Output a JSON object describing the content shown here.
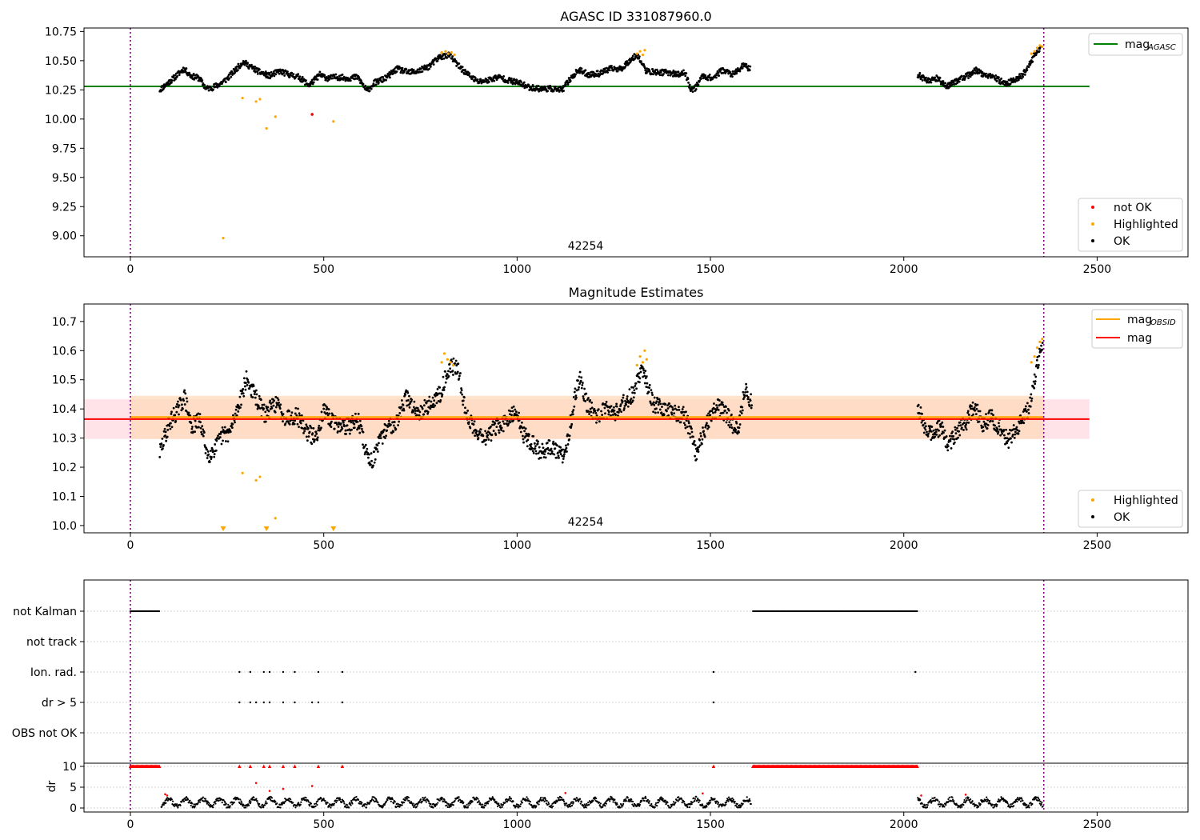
{
  "chart_data": [
    {
      "type": "scatter",
      "title": "AGASC ID 331087960.0",
      "xlim": [
        -120,
        2735
      ],
      "ylim": [
        8.82,
        10.78
      ],
      "xticks": [
        0,
        500,
        1000,
        1500,
        2000,
        2500
      ],
      "yticks": [
        "10.75",
        "10.50",
        "10.25",
        "10.00",
        "9.75",
        "9.50",
        "9.25",
        "9.00"
      ],
      "annotation": "42254",
      "vlines_x": [
        0,
        2362
      ],
      "reference_line": {
        "name": "mag_AGASC",
        "y": 10.28,
        "x": [
          -120,
          2480
        ],
        "color": "#008000"
      },
      "legend_top": [
        {
          "label": "mag",
          "sub": "AGASC",
          "color": "#008000",
          "kind": "line"
        }
      ],
      "legend_bottom": [
        {
          "label": "not OK",
          "color": "#ff0000",
          "kind": "dot"
        },
        {
          "label": "Highlighted",
          "color": "#ffa500",
          "kind": "dot"
        },
        {
          "label": "OK",
          "color": "#000000",
          "kind": "dot"
        }
      ],
      "segments": [
        {
          "x": [
            76,
            112,
            138,
            157,
            178,
            196,
            212,
            226,
            248,
            266,
            291,
            310,
            335,
            360,
            385,
            412,
            436,
            462,
            490,
            510,
            536,
            563,
            588,
            612,
            631,
            660,
            690,
            718,
            744,
            772,
            799,
            824,
            850,
            870,
            898,
            922,
            951,
            980,
            1004,
            1034,
            1061,
            1087,
            1117,
            1134,
            1159,
            1186,
            1212,
            1241,
            1269,
            1294,
            1311,
            1334,
            1363,
            1391,
            1418,
            1434,
            1450,
            1462,
            1479,
            1505,
            1531,
            1560,
            1585,
            1604
          ],
          "y": [
            10.25,
            10.35,
            10.43,
            10.37,
            10.35,
            10.26,
            10.27,
            10.29,
            10.34,
            10.4,
            10.49,
            10.45,
            10.4,
            10.37,
            10.41,
            10.38,
            10.36,
            10.29,
            10.38,
            10.35,
            10.36,
            10.35,
            10.36,
            10.24,
            10.31,
            10.35,
            10.43,
            10.4,
            10.41,
            10.45,
            10.53,
            10.55,
            10.45,
            10.39,
            10.32,
            10.33,
            10.36,
            10.33,
            10.31,
            10.27,
            10.26,
            10.26,
            10.25,
            10.33,
            10.42,
            10.38,
            10.39,
            10.43,
            10.43,
            10.51,
            10.55,
            10.41,
            10.4,
            10.4,
            10.38,
            10.4,
            10.25,
            10.27,
            10.37,
            10.35,
            10.42,
            10.38,
            10.46,
            10.43
          ]
        },
        {
          "x": [
            2036,
            2062,
            2086,
            2112,
            2137,
            2165,
            2188,
            2212,
            2238,
            2263,
            2287,
            2305,
            2320,
            2340,
            2355
          ],
          "y": [
            10.38,
            10.33,
            10.35,
            10.28,
            10.33,
            10.37,
            10.42,
            10.37,
            10.35,
            10.3,
            10.34,
            10.37,
            10.43,
            10.56,
            10.62
          ]
        }
      ],
      "highlighted": [
        {
          "x": 240,
          "y": 8.98
        },
        {
          "x": 290,
          "y": 10.18
        },
        {
          "x": 325,
          "y": 10.15
        },
        {
          "x": 335,
          "y": 10.17
        },
        {
          "x": 352,
          "y": 9.92
        },
        {
          "x": 375,
          "y": 10.02
        },
        {
          "x": 525,
          "y": 9.98
        },
        {
          "x": 805,
          "y": 10.57
        },
        {
          "x": 815,
          "y": 10.58
        },
        {
          "x": 822,
          "y": 10.56
        },
        {
          "x": 830,
          "y": 10.57
        },
        {
          "x": 838,
          "y": 10.55
        },
        {
          "x": 1310,
          "y": 10.56
        },
        {
          "x": 1318,
          "y": 10.58
        },
        {
          "x": 1325,
          "y": 10.55
        },
        {
          "x": 1330,
          "y": 10.59
        },
        {
          "x": 2330,
          "y": 10.56
        },
        {
          "x": 2338,
          "y": 10.58
        },
        {
          "x": 2345,
          "y": 10.61
        },
        {
          "x": 2352,
          "y": 10.63
        },
        {
          "x": 2358,
          "y": 10.62
        }
      ],
      "not_ok": [
        {
          "x": 470,
          "y": 10.04
        }
      ]
    },
    {
      "type": "scatter",
      "title": "Magnitude Estimates",
      "xlim": [
        -120,
        2735
      ],
      "ylim": [
        9.975,
        10.76
      ],
      "xticks": [
        0,
        500,
        1000,
        1500,
        2000,
        2500
      ],
      "yticks": [
        "10.7",
        "10.6",
        "10.5",
        "10.4",
        "10.3",
        "10.2",
        "10.1",
        "10.0"
      ],
      "annotation": "42254",
      "vlines_x": [
        0,
        2362
      ],
      "mag_band": {
        "x": [
          -120,
          2480
        ],
        "y": [
          10.297,
          10.433
        ],
        "color": "#ffc0cb"
      },
      "obsid_band": {
        "x": [
          0,
          2362
        ],
        "y": [
          10.297,
          10.445
        ],
        "color": "#ffdab9"
      },
      "mag_line": {
        "name": "mag",
        "y": 10.365,
        "x": [
          -120,
          2480
        ],
        "color": "#ff0000"
      },
      "mag_obsid_line": {
        "name": "mag_OBSID",
        "y": 10.372,
        "x": [
          0,
          2362
        ],
        "color": "#ffa500"
      },
      "legend_top": [
        {
          "label": "mag",
          "sub": "OBSID",
          "color": "#ffa500",
          "kind": "line"
        },
        {
          "label": "mag",
          "sub": "",
          "color": "#ff0000",
          "kind": "line"
        }
      ],
      "legend_bottom": [
        {
          "label": "Highlighted",
          "color": "#ffa500",
          "kind": "dot"
        },
        {
          "label": "OK",
          "color": "#000000",
          "kind": "dot"
        }
      ],
      "segments": [
        {
          "x": [
            76,
            100,
            124,
            140,
            158,
            180,
            200,
            222,
            238,
            258,
            281,
            300,
            320,
            348,
            376,
            402,
            430,
            458,
            478,
            500,
            528,
            562,
            590,
            612,
            625,
            640,
            660,
            690,
            712,
            742,
            770,
            800,
            820,
            838,
            850,
            868,
            892,
            920,
            945,
            968,
            998,
            1018,
            1040,
            1062,
            1083,
            1108,
            1122,
            1136,
            1150,
            1164,
            1180,
            1204,
            1230,
            1256,
            1283,
            1303,
            1320,
            1334,
            1350,
            1378,
            1405,
            1430,
            1448,
            1462,
            1478,
            1495,
            1520,
            1548,
            1570,
            1590,
            1608
          ],
          "y": [
            10.25,
            10.35,
            10.4,
            10.44,
            10.34,
            10.36,
            10.24,
            10.27,
            10.31,
            10.32,
            10.42,
            10.5,
            10.45,
            10.38,
            10.42,
            10.37,
            10.38,
            10.32,
            10.3,
            10.39,
            10.35,
            10.34,
            10.36,
            10.24,
            10.22,
            10.27,
            10.33,
            10.36,
            10.44,
            10.39,
            10.41,
            10.45,
            10.53,
            10.55,
            10.52,
            10.38,
            10.33,
            10.3,
            10.34,
            10.35,
            10.39,
            10.31,
            10.28,
            10.25,
            10.27,
            10.25,
            10.23,
            10.33,
            10.45,
            10.51,
            10.42,
            10.38,
            10.4,
            10.39,
            10.43,
            10.46,
            10.53,
            10.5,
            10.42,
            10.4,
            10.39,
            10.38,
            10.33,
            10.24,
            10.3,
            10.36,
            10.41,
            10.37,
            10.32,
            10.47,
            10.41
          ]
        },
        {
          "x": [
            2036,
            2055,
            2075,
            2095,
            2115,
            2136,
            2160,
            2182,
            2205,
            2228,
            2250,
            2270,
            2290,
            2305,
            2320,
            2336,
            2350,
            2360
          ],
          "y": [
            10.4,
            10.34,
            10.31,
            10.34,
            10.27,
            10.32,
            10.35,
            10.41,
            10.35,
            10.37,
            10.33,
            10.29,
            10.33,
            10.36,
            10.39,
            10.48,
            10.58,
            10.62
          ]
        }
      ],
      "highlighted": [
        {
          "x": 290,
          "y": 10.18
        },
        {
          "x": 325,
          "y": 10.155
        },
        {
          "x": 335,
          "y": 10.167
        },
        {
          "x": 375,
          "y": 10.025
        },
        {
          "x": 805,
          "y": 10.56
        },
        {
          "x": 812,
          "y": 10.59
        },
        {
          "x": 820,
          "y": 10.57
        },
        {
          "x": 828,
          "y": 10.56
        },
        {
          "x": 835,
          "y": 10.55
        },
        {
          "x": 1310,
          "y": 10.55
        },
        {
          "x": 1318,
          "y": 10.58
        },
        {
          "x": 1325,
          "y": 10.56
        },
        {
          "x": 1330,
          "y": 10.6
        },
        {
          "x": 1335,
          "y": 10.57
        },
        {
          "x": 2330,
          "y": 10.56
        },
        {
          "x": 2338,
          "y": 10.58
        },
        {
          "x": 2345,
          "y": 10.61
        },
        {
          "x": 2352,
          "y": 10.63
        },
        {
          "x": 2358,
          "y": 10.64
        }
      ],
      "offscale_markers_x": [
        240,
        352,
        525
      ]
    },
    {
      "type": "scatter",
      "title": "",
      "xlim": [
        -120,
        2735
      ],
      "xticks": [
        0,
        500,
        1000,
        1500,
        2000,
        2500
      ],
      "vlines_x": [
        0,
        2362
      ],
      "flag_rows": [
        "not Kalman",
        "not track",
        "Ion. rad.",
        "dr > 5",
        "OBS not OK"
      ],
      "flags": {
        "not Kalman": [
          [
            0,
            75
          ],
          [
            1610,
            2035
          ]
        ],
        "Ion. rad.": [
          282,
          310,
          345,
          360,
          395,
          425,
          486,
          548,
          1508,
          2030
        ],
        "dr > 5": [
          282,
          310,
          325,
          345,
          360,
          395,
          425,
          470,
          486,
          548,
          1508
        ]
      },
      "dr_ylabel": "dr",
      "dr_yticks": [
        "10",
        "5",
        "0"
      ],
      "dr_ylim": [
        -0.5,
        10.5
      ],
      "dr_clipped_x": [
        [
          0,
          75
        ],
        [
          1610,
          2035
        ],
        [
          282
        ],
        [
          310
        ],
        [
          345
        ],
        [
          360
        ],
        [
          395
        ],
        [
          425
        ],
        [
          486
        ],
        [
          548
        ],
        [
          1508
        ]
      ],
      "dr_outliers": [
        {
          "x": 325,
          "y": 6.0
        },
        {
          "x": 470,
          "y": 5.3
        },
        {
          "x": 395,
          "y": 4.6
        },
        {
          "x": 360,
          "y": 4.1
        }
      ],
      "dr_segments": [
        [
          80,
          180,
          260,
          340,
          420,
          500,
          580,
          660,
          740,
          820,
          900,
          980,
          1060,
          1140,
          1220,
          1300,
          1380,
          1460,
          1540,
          1605
        ],
        [
          2036,
          2100,
          2180,
          2260,
          2360
        ]
      ]
    }
  ]
}
